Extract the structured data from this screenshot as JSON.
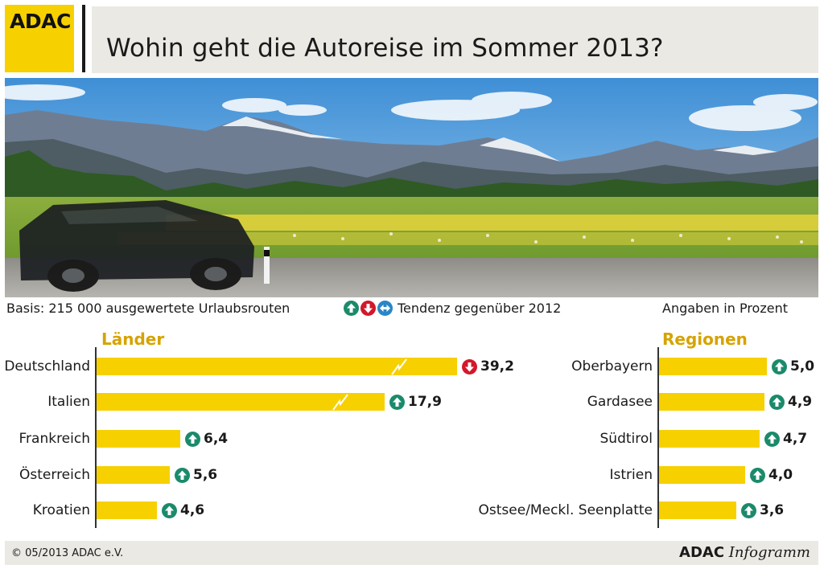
{
  "header": {
    "logo": "ADAC",
    "title": "Wohin geht die Autoreise im Sommer 2013?"
  },
  "legend": {
    "basis": "Basis: 215 000 ausgewertete Urlaubsrouten",
    "tendenz": "Tendenz gegenüber 2012",
    "icons": [
      "arrow-up-icon",
      "arrow-down-icon",
      "arrow-left-right-icon"
    ],
    "angaben": "Angaben in Prozent"
  },
  "colors": {
    "bar": "#f7d000",
    "heading": "#d6a300",
    "trend_up": "#1b8a6b",
    "trend_down": "#d2182a",
    "trend_same": "#2a86c6",
    "panel": "#ebe9e4"
  },
  "chart_data": [
    {
      "type": "bar",
      "orientation": "horizontal",
      "title": "Länder",
      "unit": "Prozent",
      "categories": [
        "Deutschland",
        "Italien",
        "Frankreich",
        "Österreich",
        "Kroatien"
      ],
      "values": [
        39.2,
        17.9,
        6.4,
        5.6,
        4.6
      ],
      "value_labels": [
        "39,2",
        "17,9",
        "6,4",
        "5,6",
        "4,6"
      ],
      "trend": [
        "down",
        "up",
        "up",
        "up",
        "up"
      ],
      "broken_axis": [
        true,
        true,
        false,
        false,
        false
      ]
    },
    {
      "type": "bar",
      "orientation": "horizontal",
      "title": "Regionen",
      "unit": "Prozent",
      "categories": [
        "Oberbayern",
        "Gardasee",
        "Südtirol",
        "Istrien",
        "Ostsee/Meckl. Seenplatte"
      ],
      "values": [
        5.0,
        4.9,
        4.7,
        4.0,
        3.6
      ],
      "value_labels": [
        "5,0",
        "4,9",
        "4,7",
        "4,0",
        "3,6"
      ],
      "trend": [
        "up",
        "up",
        "up",
        "up",
        "up"
      ],
      "broken_axis": [
        false,
        false,
        false,
        false,
        false
      ]
    }
  ],
  "footer": {
    "copyright": "© 05/2013 ADAC e.V.",
    "brand_bold": "ADAC",
    "brand_italic": "Infogramm"
  }
}
